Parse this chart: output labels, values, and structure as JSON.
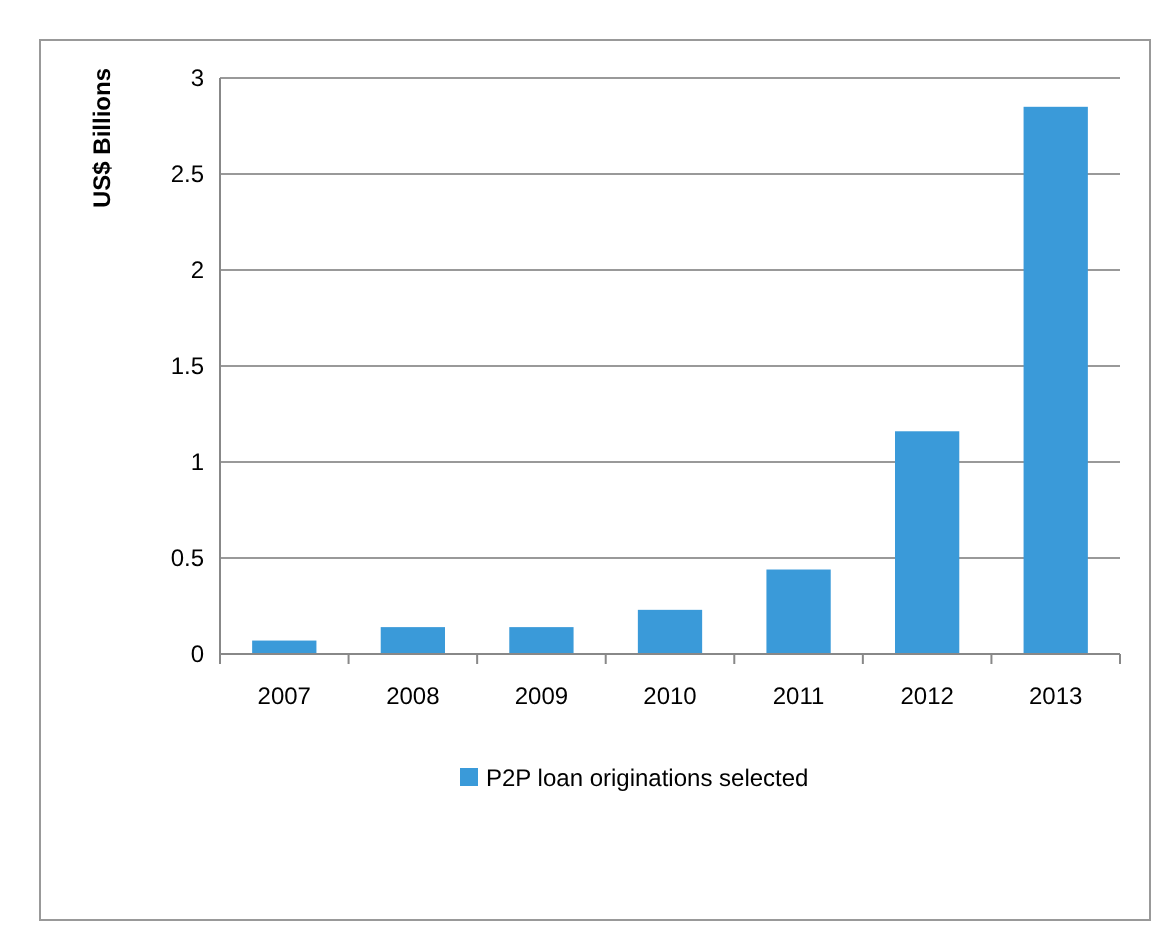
{
  "chart_data": {
    "type": "bar",
    "ylabel": "US$ Billions",
    "categories": [
      "2007",
      "2008",
      "2009",
      "2010",
      "2011",
      "2012",
      "2013"
    ],
    "series": [
      {
        "name": "P2P loan originations selected",
        "color": "#3a9ad9",
        "values": [
          0.07,
          0.14,
          0.14,
          0.23,
          0.44,
          1.16,
          2.85
        ]
      }
    ],
    "ylim": [
      0,
      3
    ],
    "yticks": [
      0,
      0.5,
      1,
      1.5,
      2,
      2.5,
      3
    ],
    "grid": "y",
    "legend": "bottom"
  }
}
